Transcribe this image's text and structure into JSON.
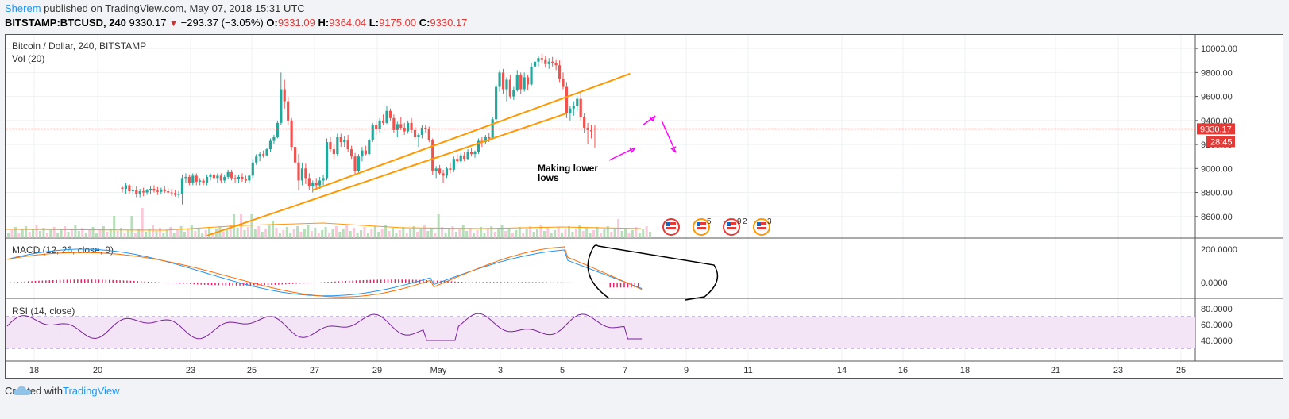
{
  "header": {
    "author": "Sherem",
    "published_text": "published on TradingView.com, May 07, 2018 15:31 UTC",
    "symbol": "BITSTAMP:BTCUSD, 240",
    "last": "9330.17",
    "change": "−293.37 (−3.05%)",
    "o_label": "O:",
    "o_value": "9331.09",
    "h_label": "H:",
    "h_value": "9364.04",
    "l_label": "L:",
    "l_value": "9175.00",
    "c_label": "C:",
    "c_value": "9330.17"
  },
  "panes": {
    "main_title": "Bitcoin / Dollar, 240, BITSTAMP",
    "vol_title": "Vol (20)",
    "macd_title": "MACD (12, 26, close, 9)",
    "rsi_title": "RSI (14, close)"
  },
  "price_tag": "9330.17",
  "countdown_tag": "28:45",
  "annotation": {
    "line1": "Making lower",
    "line2": "lows"
  },
  "event_badges": [
    "5",
    "9",
    "2",
    "3"
  ],
  "footer": {
    "created_with": "Created with",
    "brand": "TradingView"
  },
  "colors": {
    "up": "#26a69a",
    "down": "#ef5350",
    "trend": "#ff9800",
    "magenta": "#ff00ff",
    "price_line": "#e53935",
    "macd": "#2196f3",
    "signal": "#ff6d00",
    "rsi": "#7b1fa2"
  },
  "chart_data": {
    "type": "candlestick",
    "price_axis_ticks": [
      "10000.00",
      "9800.00",
      "9600.00",
      "9400.00",
      "9200.00",
      "9000.00",
      "8800.00",
      "8600.00"
    ],
    "price_range": [
      8420,
      10100
    ],
    "macd_axis_ticks": [
      "200.0000",
      "0.0000"
    ],
    "rsi_axis_ticks": [
      "80.0000",
      "60.0000",
      "40.0000"
    ],
    "rsi_bands": [
      70,
      30
    ],
    "x_tick_labels": [
      "18",
      "20",
      "23",
      "25",
      "27",
      "29",
      "May",
      "3",
      "5",
      "7",
      "9",
      "11",
      "14",
      "16",
      "18",
      "21",
      "23",
      "25"
    ],
    "candles": [
      {
        "o": 8840,
        "h": 8850,
        "l": 8800,
        "c": 8830
      },
      {
        "o": 8830,
        "h": 8880,
        "l": 8790,
        "c": 8860
      },
      {
        "o": 8860,
        "h": 8870,
        "l": 8790,
        "c": 8810
      },
      {
        "o": 8810,
        "h": 8850,
        "l": 8780,
        "c": 8820
      },
      {
        "o": 8820,
        "h": 8850,
        "l": 8760,
        "c": 8790
      },
      {
        "o": 8790,
        "h": 8830,
        "l": 8760,
        "c": 8810
      },
      {
        "o": 8810,
        "h": 8840,
        "l": 8770,
        "c": 8800
      },
      {
        "o": 8800,
        "h": 8830,
        "l": 8780,
        "c": 8820
      },
      {
        "o": 8820,
        "h": 8850,
        "l": 8790,
        "c": 8830
      },
      {
        "o": 8830,
        "h": 8860,
        "l": 8800,
        "c": 8815
      },
      {
        "o": 8815,
        "h": 8845,
        "l": 8780,
        "c": 8805
      },
      {
        "o": 8805,
        "h": 8840,
        "l": 8785,
        "c": 8825
      },
      {
        "o": 8825,
        "h": 8850,
        "l": 8795,
        "c": 8810
      },
      {
        "o": 8810,
        "h": 8835,
        "l": 8790,
        "c": 8800
      },
      {
        "o": 8800,
        "h": 8830,
        "l": 8770,
        "c": 8795
      },
      {
        "o": 8795,
        "h": 8820,
        "l": 8765,
        "c": 8780
      },
      {
        "o": 8780,
        "h": 8810,
        "l": 8750,
        "c": 8790
      },
      {
        "o": 8790,
        "h": 8950,
        "l": 8700,
        "c": 8920
      },
      {
        "o": 8920,
        "h": 8960,
        "l": 8880,
        "c": 8930
      },
      {
        "o": 8930,
        "h": 8950,
        "l": 8860,
        "c": 8880
      },
      {
        "o": 8880,
        "h": 8960,
        "l": 8860,
        "c": 8940
      },
      {
        "o": 8940,
        "h": 8960,
        "l": 8860,
        "c": 8890
      },
      {
        "o": 8890,
        "h": 8920,
        "l": 8860,
        "c": 8900
      },
      {
        "o": 8900,
        "h": 8920,
        "l": 8860,
        "c": 8880
      },
      {
        "o": 8880,
        "h": 8950,
        "l": 8860,
        "c": 8930
      },
      {
        "o": 8930,
        "h": 8960,
        "l": 8900,
        "c": 8950
      },
      {
        "o": 8950,
        "h": 8980,
        "l": 8900,
        "c": 8920
      },
      {
        "o": 8920,
        "h": 8960,
        "l": 8880,
        "c": 8940
      },
      {
        "o": 8940,
        "h": 8960,
        "l": 8880,
        "c": 8900
      },
      {
        "o": 8900,
        "h": 8950,
        "l": 8880,
        "c": 8930
      },
      {
        "o": 8930,
        "h": 8990,
        "l": 8910,
        "c": 8970
      },
      {
        "o": 8970,
        "h": 8990,
        "l": 8900,
        "c": 8920
      },
      {
        "o": 8920,
        "h": 8950,
        "l": 8880,
        "c": 8910
      },
      {
        "o": 8910,
        "h": 8950,
        "l": 8880,
        "c": 8930
      },
      {
        "o": 8930,
        "h": 8960,
        "l": 8890,
        "c": 8910
      },
      {
        "o": 8910,
        "h": 8940,
        "l": 8880,
        "c": 8900
      },
      {
        "o": 8900,
        "h": 8950,
        "l": 8880,
        "c": 8940
      },
      {
        "o": 8940,
        "h": 9080,
        "l": 8920,
        "c": 9050
      },
      {
        "o": 9050,
        "h": 9120,
        "l": 9030,
        "c": 9100
      },
      {
        "o": 9100,
        "h": 9140,
        "l": 9060,
        "c": 9120
      },
      {
        "o": 9120,
        "h": 9150,
        "l": 9090,
        "c": 9110
      },
      {
        "o": 9110,
        "h": 9170,
        "l": 9100,
        "c": 9160
      },
      {
        "o": 9160,
        "h": 9250,
        "l": 9140,
        "c": 9230
      },
      {
        "o": 9230,
        "h": 9280,
        "l": 9200,
        "c": 9260
      },
      {
        "o": 9260,
        "h": 9400,
        "l": 9250,
        "c": 9380
      },
      {
        "o": 9380,
        "h": 9800,
        "l": 9360,
        "c": 9660
      },
      {
        "o": 9660,
        "h": 9740,
        "l": 9500,
        "c": 9560
      },
      {
        "o": 9560,
        "h": 9600,
        "l": 9360,
        "c": 9400
      },
      {
        "o": 9400,
        "h": 9420,
        "l": 9150,
        "c": 9180
      },
      {
        "o": 9180,
        "h": 9260,
        "l": 9020,
        "c": 9050
      },
      {
        "o": 9050,
        "h": 9120,
        "l": 8820,
        "c": 8900
      },
      {
        "o": 8900,
        "h": 9050,
        "l": 8860,
        "c": 9000
      },
      {
        "o": 9000,
        "h": 9040,
        "l": 8870,
        "c": 8920
      },
      {
        "o": 8920,
        "h": 8960,
        "l": 8820,
        "c": 8850
      },
      {
        "o": 8850,
        "h": 8900,
        "l": 8800,
        "c": 8880
      },
      {
        "o": 8880,
        "h": 8920,
        "l": 8820,
        "c": 8860
      },
      {
        "o": 8860,
        "h": 8930,
        "l": 8830,
        "c": 8900
      },
      {
        "o": 8900,
        "h": 8950,
        "l": 8860,
        "c": 8920
      },
      {
        "o": 8920,
        "h": 9250,
        "l": 8900,
        "c": 9220
      },
      {
        "o": 9220,
        "h": 9260,
        "l": 9140,
        "c": 9160
      },
      {
        "o": 9160,
        "h": 9200,
        "l": 9080,
        "c": 9120
      },
      {
        "o": 9120,
        "h": 9290,
        "l": 9100,
        "c": 9260
      },
      {
        "o": 9260,
        "h": 9290,
        "l": 9180,
        "c": 9220
      },
      {
        "o": 9220,
        "h": 9270,
        "l": 9180,
        "c": 9240
      },
      {
        "o": 9240,
        "h": 9280,
        "l": 9140,
        "c": 9160
      },
      {
        "o": 9160,
        "h": 9190,
        "l": 9080,
        "c": 9100
      },
      {
        "o": 9100,
        "h": 9130,
        "l": 8950,
        "c": 8980
      },
      {
        "o": 8980,
        "h": 9120,
        "l": 8960,
        "c": 9100
      },
      {
        "o": 9100,
        "h": 9180,
        "l": 9060,
        "c": 9150
      },
      {
        "o": 9150,
        "h": 9190,
        "l": 9110,
        "c": 9120
      },
      {
        "o": 9120,
        "h": 9250,
        "l": 9110,
        "c": 9240
      },
      {
        "o": 9240,
        "h": 9380,
        "l": 9220,
        "c": 9360
      },
      {
        "o": 9360,
        "h": 9400,
        "l": 9280,
        "c": 9330
      },
      {
        "o": 9330,
        "h": 9420,
        "l": 9300,
        "c": 9400
      },
      {
        "o": 9400,
        "h": 9450,
        "l": 9360,
        "c": 9380
      },
      {
        "o": 9380,
        "h": 9520,
        "l": 9370,
        "c": 9480
      },
      {
        "o": 9480,
        "h": 9500,
        "l": 9400,
        "c": 9420
      },
      {
        "o": 9420,
        "h": 9450,
        "l": 9300,
        "c": 9320
      },
      {
        "o": 9320,
        "h": 9390,
        "l": 9260,
        "c": 9370
      },
      {
        "o": 9370,
        "h": 9430,
        "l": 9320,
        "c": 9340
      },
      {
        "o": 9340,
        "h": 9380,
        "l": 9280,
        "c": 9310
      },
      {
        "o": 9310,
        "h": 9400,
        "l": 9290,
        "c": 9380
      },
      {
        "o": 9380,
        "h": 9420,
        "l": 9300,
        "c": 9320
      },
      {
        "o": 9320,
        "h": 9350,
        "l": 9240,
        "c": 9260
      },
      {
        "o": 9260,
        "h": 9300,
        "l": 9180,
        "c": 9280
      },
      {
        "o": 9280,
        "h": 9360,
        "l": 9250,
        "c": 9340
      },
      {
        "o": 9340,
        "h": 9360,
        "l": 9300,
        "c": 9330
      },
      {
        "o": 9330,
        "h": 9350,
        "l": 9220,
        "c": 9240
      },
      {
        "o": 9240,
        "h": 9250,
        "l": 8950,
        "c": 8980
      },
      {
        "o": 8980,
        "h": 9020,
        "l": 8920,
        "c": 9000
      },
      {
        "o": 9000,
        "h": 9030,
        "l": 8950,
        "c": 8960
      },
      {
        "o": 8960,
        "h": 8990,
        "l": 8880,
        "c": 8940
      },
      {
        "o": 8940,
        "h": 9010,
        "l": 8920,
        "c": 9000
      },
      {
        "o": 9000,
        "h": 9050,
        "l": 8960,
        "c": 8990
      },
      {
        "o": 8990,
        "h": 9100,
        "l": 8970,
        "c": 9080
      },
      {
        "o": 9080,
        "h": 9120,
        "l": 9040,
        "c": 9060
      },
      {
        "o": 9060,
        "h": 9130,
        "l": 9040,
        "c": 9110
      },
      {
        "o": 9110,
        "h": 9140,
        "l": 9060,
        "c": 9080
      },
      {
        "o": 9080,
        "h": 9160,
        "l": 9070,
        "c": 9140
      },
      {
        "o": 9140,
        "h": 9170,
        "l": 9100,
        "c": 9120
      },
      {
        "o": 9120,
        "h": 9150,
        "l": 9090,
        "c": 9140
      },
      {
        "o": 9140,
        "h": 9250,
        "l": 9120,
        "c": 9230
      },
      {
        "o": 9230,
        "h": 9260,
        "l": 9180,
        "c": 9220
      },
      {
        "o": 9220,
        "h": 9280,
        "l": 9200,
        "c": 9260
      },
      {
        "o": 9260,
        "h": 9300,
        "l": 9220,
        "c": 9250
      },
      {
        "o": 9250,
        "h": 9430,
        "l": 9240,
        "c": 9410
      },
      {
        "o": 9410,
        "h": 9700,
        "l": 9400,
        "c": 9680
      },
      {
        "o": 9680,
        "h": 9820,
        "l": 9640,
        "c": 9800
      },
      {
        "o": 9800,
        "h": 9830,
        "l": 9620,
        "c": 9660
      },
      {
        "o": 9660,
        "h": 9760,
        "l": 9560,
        "c": 9740
      },
      {
        "o": 9740,
        "h": 9780,
        "l": 9580,
        "c": 9600
      },
      {
        "o": 9600,
        "h": 9680,
        "l": 9570,
        "c": 9650
      },
      {
        "o": 9650,
        "h": 9820,
        "l": 9640,
        "c": 9780
      },
      {
        "o": 9780,
        "h": 9800,
        "l": 9620,
        "c": 9660
      },
      {
        "o": 9660,
        "h": 9800,
        "l": 9640,
        "c": 9760
      },
      {
        "o": 9760,
        "h": 9780,
        "l": 9650,
        "c": 9700
      },
      {
        "o": 9700,
        "h": 9880,
        "l": 9690,
        "c": 9850
      },
      {
        "o": 9850,
        "h": 9930,
        "l": 9810,
        "c": 9890
      },
      {
        "o": 9890,
        "h": 9940,
        "l": 9850,
        "c": 9920
      },
      {
        "o": 9920,
        "h": 9960,
        "l": 9880,
        "c": 9910
      },
      {
        "o": 9910,
        "h": 9940,
        "l": 9840,
        "c": 9870
      },
      {
        "o": 9870,
        "h": 9920,
        "l": 9830,
        "c": 9890
      },
      {
        "o": 9890,
        "h": 9930,
        "l": 9850,
        "c": 9880
      },
      {
        "o": 9880,
        "h": 9910,
        "l": 9820,
        "c": 9860
      },
      {
        "o": 9860,
        "h": 9900,
        "l": 9720,
        "c": 9750
      },
      {
        "o": 9750,
        "h": 9800,
        "l": 9660,
        "c": 9680
      },
      {
        "o": 9680,
        "h": 9720,
        "l": 9420,
        "c": 9460
      },
      {
        "o": 9460,
        "h": 9520,
        "l": 9400,
        "c": 9500
      },
      {
        "o": 9500,
        "h": 9560,
        "l": 9440,
        "c": 9520
      },
      {
        "o": 9520,
        "h": 9600,
        "l": 9480,
        "c": 9580
      },
      {
        "o": 9580,
        "h": 9640,
        "l": 9400,
        "c": 9430
      },
      {
        "o": 9430,
        "h": 9460,
        "l": 9300,
        "c": 9340
      },
      {
        "o": 9340,
        "h": 9380,
        "l": 9200,
        "c": 9320
      },
      {
        "o": 9320,
        "h": 9360,
        "l": 9250,
        "c": 9310
      },
      {
        "o": 9331.09,
        "h": 9364.04,
        "l": 9175,
        "c": 9330.17
      }
    ],
    "trendlines": [
      {
        "name": "support",
        "from": {
          "bar": 54,
          "price": 8820
        },
        "to": {
          "bar": 144,
          "price": 9790
        }
      },
      {
        "name": "breakdown",
        "from": {
          "bar": 24,
          "price": 8440
        },
        "to": {
          "bar": 126,
          "price": 9460
        }
      }
    ]
  }
}
